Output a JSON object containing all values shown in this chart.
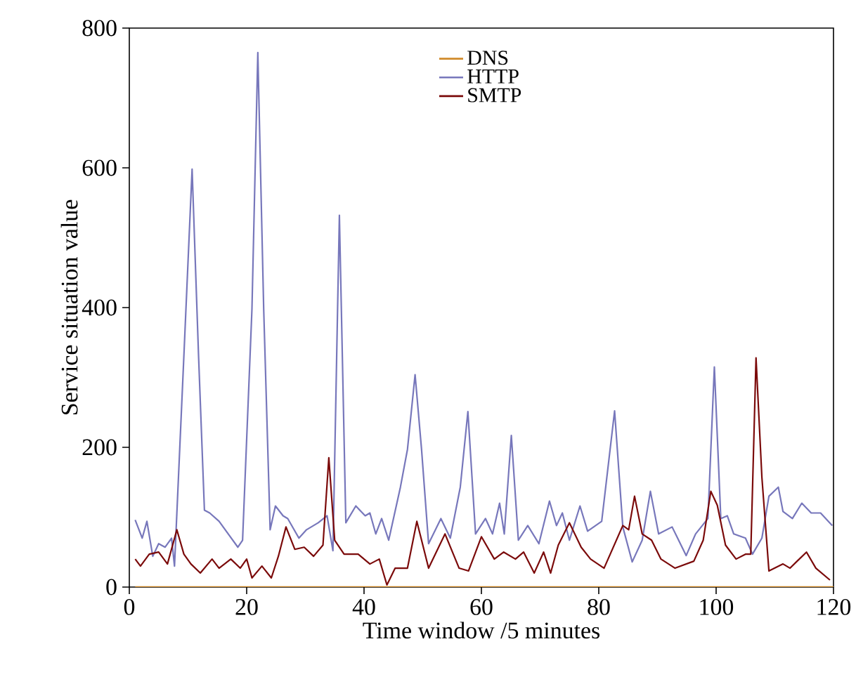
{
  "chart_data": {
    "type": "line",
    "xlabel": "Time window /5 minutes",
    "ylabel": "Service situation value",
    "xlim": [
      0,
      120
    ],
    "xticks": [
      0,
      20,
      40,
      60,
      80,
      100,
      120
    ],
    "ylim": [
      0,
      800
    ],
    "yticks": [
      0,
      200,
      400,
      600,
      800
    ],
    "legend": "top",
    "grid": false,
    "marker": "none",
    "line_style": "solid",
    "series": [
      {
        "name": "DNS",
        "color": "#d08a2a",
        "x": [
          1,
          120
        ],
        "values": [
          0,
          0
        ]
      },
      {
        "name": "HTTP",
        "color": "#7777bb",
        "x": [
          1,
          2.2,
          3,
          4,
          5,
          6.1,
          7.2,
          7.7,
          9.3,
          10.7,
          11.8,
          12.8,
          13.7,
          15.3,
          18.5,
          19.3,
          20.9,
          21.9,
          22.9,
          24,
          24.9,
          26.2,
          27,
          28.9,
          30.2,
          32.2,
          33.7,
          34.7,
          35.8,
          36.9,
          38.6,
          40.2,
          41,
          42,
          43,
          44.2,
          46.2,
          47.4,
          48.7,
          49.8,
          51,
          53.1,
          54.7,
          56.4,
          57.7,
          59,
          60.7,
          61.9,
          63.1,
          63.9,
          65.1,
          66.3,
          67.9,
          69.8,
          71.6,
          72.8,
          73.8,
          75,
          76.8,
          78.1,
          80.5,
          82.7,
          84.1,
          85.7,
          87.4,
          88.8,
          90.2,
          92.5,
          94.9,
          96.5,
          98.6,
          99.7,
          100.8,
          101.9,
          103,
          105,
          106.2,
          107.8,
          109,
          110.6,
          111.4,
          113,
          114.6,
          116.2,
          117.8,
          119.8
        ],
        "values": [
          96,
          70,
          94,
          44,
          62,
          57,
          70,
          30,
          331,
          598,
          331,
          110,
          106,
          94,
          57,
          67,
          398,
          765,
          398,
          82,
          116,
          102,
          98,
          70,
          82,
          92,
          102,
          52,
          532,
          92,
          116,
          102,
          106,
          76,
          98,
          67,
          143,
          197,
          304,
          197,
          62,
          98,
          70,
          143,
          251,
          76,
          98,
          76,
          120,
          76,
          217,
          67,
          88,
          62,
          123,
          88,
          106,
          67,
          116,
          80,
          94,
          252,
          86,
          36,
          67,
          137,
          76,
          86,
          45,
          76,
          98,
          315,
          98,
          102,
          76,
          70,
          47,
          70,
          130,
          143,
          108,
          98,
          120,
          106,
          106,
          88
        ]
      },
      {
        "name": "SMTP",
        "color": "#7b0a0a",
        "x": [
          1,
          1.9,
          3.4,
          5,
          6.5,
          8.1,
          9.3,
          10.5,
          12.1,
          14.1,
          15.3,
          17.3,
          18.9,
          20,
          20.9,
          22.6,
          24.2,
          25.4,
          26.7,
          28.2,
          29.8,
          31.4,
          33,
          34,
          35,
          36.6,
          39,
          41,
          42.6,
          43.9,
          45.3,
          47.4,
          49,
          51,
          53.8,
          56.2,
          57.8,
          60,
          62.2,
          63.8,
          65.8,
          67.2,
          69,
          70.6,
          71.8,
          73.1,
          75,
          77,
          78.6,
          80.9,
          84.1,
          85.1,
          86.1,
          87.4,
          89,
          90.6,
          93,
          96.2,
          97.8,
          99.1,
          100.2,
          101.6,
          103.4,
          105,
          105.9,
          106.8,
          107.8,
          109,
          111.4,
          112.6,
          113.8,
          115.4,
          117,
          119.4
        ],
        "values": [
          40,
          30,
          47,
          50,
          33,
          82,
          47,
          33,
          20,
          40,
          27,
          40,
          27,
          40,
          13,
          30,
          13,
          44,
          86,
          54,
          57,
          44,
          60,
          185,
          67,
          47,
          47,
          33,
          40,
          3,
          27,
          27,
          94,
          27,
          76,
          27,
          23,
          72,
          40,
          50,
          40,
          50,
          20,
          50,
          20,
          60,
          92,
          57,
          40,
          27,
          88,
          82,
          130,
          76,
          67,
          40,
          27,
          37,
          67,
          137,
          117,
          60,
          40,
          47,
          47,
          328,
          157,
          23,
          33,
          27,
          37,
          50,
          27,
          10
        ]
      }
    ]
  }
}
